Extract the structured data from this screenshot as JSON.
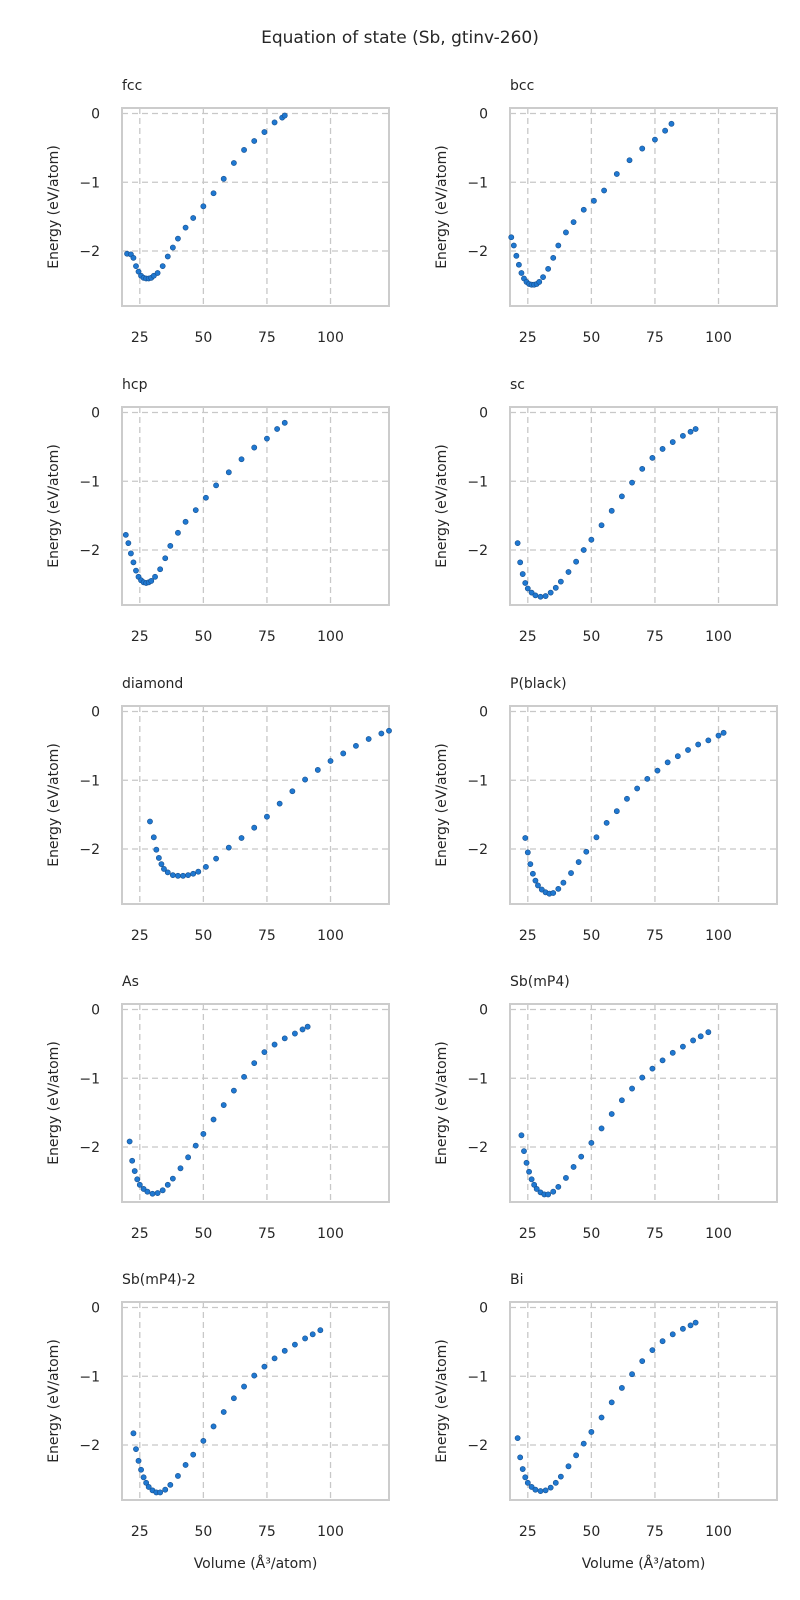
{
  "title": "Equation of state (Sb, gtinv-260)",
  "colors": {
    "point": "#1f78d1",
    "point_edge": "#17508f",
    "grid": "#c8c8c8",
    "frame": "#cccccc"
  },
  "chart_data": [
    {
      "type": "scatter",
      "title": "fcc",
      "xlabel": "",
      "ylabel": "Energy (eV/atom)",
      "xticks": [
        "25",
        "50",
        "75",
        "100"
      ],
      "yticks": [
        "0",
        "−1",
        "−2"
      ],
      "xlim": [
        18,
        123
      ],
      "ylim": [
        -2.8,
        0.08
      ],
      "grid": true,
      "points": [
        [
          20.0,
          -2.04
        ],
        [
          21.5,
          -2.05
        ],
        [
          22.5,
          -2.1
        ],
        [
          23.5,
          -2.22
        ],
        [
          24.5,
          -2.3
        ],
        [
          25.5,
          -2.36
        ],
        [
          26.5,
          -2.39
        ],
        [
          27.5,
          -2.4
        ],
        [
          28.5,
          -2.4
        ],
        [
          29.5,
          -2.39
        ],
        [
          30.5,
          -2.36
        ],
        [
          32.0,
          -2.32
        ],
        [
          34.0,
          -2.22
        ],
        [
          36.0,
          -2.08
        ],
        [
          38.0,
          -1.95
        ],
        [
          40.0,
          -1.82
        ],
        [
          43.0,
          -1.66
        ],
        [
          46.0,
          -1.52
        ],
        [
          50.0,
          -1.35
        ],
        [
          54.0,
          -1.16
        ],
        [
          58.0,
          -0.95
        ],
        [
          62.0,
          -0.72
        ],
        [
          66.0,
          -0.53
        ],
        [
          70.0,
          -0.4
        ],
        [
          74.0,
          -0.27
        ],
        [
          78.0,
          -0.13
        ],
        [
          81.0,
          -0.06
        ],
        [
          82.0,
          -0.03
        ]
      ]
    },
    {
      "type": "scatter",
      "title": "bcc",
      "xlabel": "",
      "ylabel": "Energy (eV/atom)",
      "xticks": [
        "25",
        "50",
        "75",
        "100"
      ],
      "yticks": [
        "0",
        "−1",
        "−2"
      ],
      "xlim": [
        18,
        123
      ],
      "ylim": [
        -2.8,
        0.08
      ],
      "grid": true,
      "points": [
        [
          18.5,
          -1.8
        ],
        [
          19.5,
          -1.92
        ],
        [
          20.5,
          -2.07
        ],
        [
          21.5,
          -2.2
        ],
        [
          22.5,
          -2.32
        ],
        [
          23.5,
          -2.4
        ],
        [
          24.5,
          -2.45
        ],
        [
          25.5,
          -2.48
        ],
        [
          26.5,
          -2.49
        ],
        [
          27.5,
          -2.49
        ],
        [
          28.5,
          -2.48
        ],
        [
          29.5,
          -2.45
        ],
        [
          31.0,
          -2.38
        ],
        [
          33.0,
          -2.26
        ],
        [
          35.0,
          -2.1
        ],
        [
          37.0,
          -1.92
        ],
        [
          40.0,
          -1.73
        ],
        [
          43.0,
          -1.58
        ],
        [
          47.0,
          -1.4
        ],
        [
          51.0,
          -1.27
        ],
        [
          55.0,
          -1.12
        ],
        [
          60.0,
          -0.88
        ],
        [
          65.0,
          -0.68
        ],
        [
          70.0,
          -0.51
        ],
        [
          75.0,
          -0.38
        ],
        [
          79.0,
          -0.25
        ],
        [
          81.5,
          -0.15
        ]
      ]
    },
    {
      "type": "scatter",
      "title": "hcp",
      "xlabel": "",
      "ylabel": "Energy (eV/atom)",
      "xticks": [
        "25",
        "50",
        "75",
        "100"
      ],
      "yticks": [
        "0",
        "−1",
        "−2"
      ],
      "xlim": [
        18,
        123
      ],
      "ylim": [
        -2.8,
        0.08
      ],
      "grid": true,
      "points": [
        [
          19.5,
          -1.78
        ],
        [
          20.5,
          -1.9
        ],
        [
          21.5,
          -2.05
        ],
        [
          22.5,
          -2.18
        ],
        [
          23.5,
          -2.3
        ],
        [
          24.5,
          -2.39
        ],
        [
          25.5,
          -2.44
        ],
        [
          26.5,
          -2.47
        ],
        [
          27.5,
          -2.48
        ],
        [
          28.5,
          -2.47
        ],
        [
          29.5,
          -2.45
        ],
        [
          31.0,
          -2.39
        ],
        [
          33.0,
          -2.28
        ],
        [
          35.0,
          -2.12
        ],
        [
          37.0,
          -1.94
        ],
        [
          40.0,
          -1.75
        ],
        [
          43.0,
          -1.59
        ],
        [
          47.0,
          -1.42
        ],
        [
          51.0,
          -1.24
        ],
        [
          55.0,
          -1.06
        ],
        [
          60.0,
          -0.87
        ],
        [
          65.0,
          -0.68
        ],
        [
          70.0,
          -0.51
        ],
        [
          75.0,
          -0.38
        ],
        [
          79.0,
          -0.24
        ],
        [
          82.0,
          -0.15
        ]
      ]
    },
    {
      "type": "scatter",
      "title": "sc",
      "xlabel": "",
      "ylabel": "Energy (eV/atom)",
      "xticks": [
        "25",
        "50",
        "75",
        "100"
      ],
      "yticks": [
        "0",
        "−1",
        "−2"
      ],
      "xlim": [
        18,
        123
      ],
      "ylim": [
        -2.8,
        0.08
      ],
      "grid": true,
      "points": [
        [
          21.0,
          -1.9
        ],
        [
          22.0,
          -2.18
        ],
        [
          23.0,
          -2.35
        ],
        [
          24.0,
          -2.48
        ],
        [
          25.0,
          -2.56
        ],
        [
          26.5,
          -2.62
        ],
        [
          28.0,
          -2.66
        ],
        [
          30.0,
          -2.68
        ],
        [
          32.0,
          -2.67
        ],
        [
          34.0,
          -2.62
        ],
        [
          36.0,
          -2.55
        ],
        [
          38.0,
          -2.46
        ],
        [
          41.0,
          -2.32
        ],
        [
          44.0,
          -2.17
        ],
        [
          47.0,
          -2.0
        ],
        [
          50.0,
          -1.85
        ],
        [
          54.0,
          -1.64
        ],
        [
          58.0,
          -1.43
        ],
        [
          62.0,
          -1.22
        ],
        [
          66.0,
          -1.02
        ],
        [
          70.0,
          -0.82
        ],
        [
          74.0,
          -0.66
        ],
        [
          78.0,
          -0.53
        ],
        [
          82.0,
          -0.43
        ],
        [
          86.0,
          -0.34
        ],
        [
          89.0,
          -0.28
        ],
        [
          91.0,
          -0.24
        ]
      ]
    },
    {
      "type": "scatter",
      "title": "diamond",
      "xlabel": "",
      "ylabel": "Energy (eV/atom)",
      "xticks": [
        "25",
        "50",
        "75",
        "100"
      ],
      "yticks": [
        "0",
        "−1",
        "−2"
      ],
      "xlim": [
        18,
        123
      ],
      "ylim": [
        -2.8,
        0.08
      ],
      "grid": true,
      "points": [
        [
          29.0,
          -1.6
        ],
        [
          30.5,
          -1.83
        ],
        [
          31.5,
          -2.01
        ],
        [
          32.5,
          -2.13
        ],
        [
          33.5,
          -2.22
        ],
        [
          34.5,
          -2.29
        ],
        [
          36.0,
          -2.34
        ],
        [
          38.0,
          -2.38
        ],
        [
          40.0,
          -2.39
        ],
        [
          42.0,
          -2.39
        ],
        [
          44.0,
          -2.38
        ],
        [
          46.0,
          -2.36
        ],
        [
          48.0,
          -2.33
        ],
        [
          51.0,
          -2.26
        ],
        [
          55.0,
          -2.14
        ],
        [
          60.0,
          -1.98
        ],
        [
          65.0,
          -1.84
        ],
        [
          70.0,
          -1.69
        ],
        [
          75.0,
          -1.53
        ],
        [
          80.0,
          -1.34
        ],
        [
          85.0,
          -1.16
        ],
        [
          90.0,
          -0.99
        ],
        [
          95.0,
          -0.85
        ],
        [
          100.0,
          -0.72
        ],
        [
          105.0,
          -0.61
        ],
        [
          110.0,
          -0.5
        ],
        [
          115.0,
          -0.4
        ],
        [
          120.0,
          -0.32
        ],
        [
          123.0,
          -0.28
        ]
      ]
    },
    {
      "type": "scatter",
      "title": "P(black)",
      "xlabel": "",
      "ylabel": "Energy (eV/atom)",
      "xticks": [
        "25",
        "50",
        "75",
        "100"
      ],
      "yticks": [
        "0",
        "−1",
        "−2"
      ],
      "xlim": [
        18,
        123
      ],
      "ylim": [
        -2.8,
        0.08
      ],
      "grid": true,
      "points": [
        [
          24.0,
          -1.84
        ],
        [
          25.0,
          -2.05
        ],
        [
          26.0,
          -2.22
        ],
        [
          27.0,
          -2.36
        ],
        [
          28.0,
          -2.46
        ],
        [
          29.0,
          -2.53
        ],
        [
          30.5,
          -2.59
        ],
        [
          32.0,
          -2.63
        ],
        [
          33.5,
          -2.65
        ],
        [
          35.0,
          -2.64
        ],
        [
          37.0,
          -2.58
        ],
        [
          39.0,
          -2.49
        ],
        [
          42.0,
          -2.35
        ],
        [
          45.0,
          -2.19
        ],
        [
          48.0,
          -2.04
        ],
        [
          52.0,
          -1.83
        ],
        [
          56.0,
          -1.62
        ],
        [
          60.0,
          -1.45
        ],
        [
          64.0,
          -1.27
        ],
        [
          68.0,
          -1.12
        ],
        [
          72.0,
          -0.98
        ],
        [
          76.0,
          -0.86
        ],
        [
          80.0,
          -0.74
        ],
        [
          84.0,
          -0.65
        ],
        [
          88.0,
          -0.56
        ],
        [
          92.0,
          -0.48
        ],
        [
          96.0,
          -0.42
        ],
        [
          100.0,
          -0.35
        ],
        [
          102.0,
          -0.31
        ]
      ]
    },
    {
      "type": "scatter",
      "title": "As",
      "xlabel": "",
      "ylabel": "Energy (eV/atom)",
      "xticks": [
        "25",
        "50",
        "75",
        "100"
      ],
      "yticks": [
        "0",
        "−1",
        "−2"
      ],
      "xlim": [
        18,
        123
      ],
      "ylim": [
        -2.8,
        0.08
      ],
      "grid": true,
      "points": [
        [
          21.0,
          -1.92
        ],
        [
          22.0,
          -2.2
        ],
        [
          23.0,
          -2.35
        ],
        [
          24.0,
          -2.47
        ],
        [
          25.0,
          -2.55
        ],
        [
          26.5,
          -2.61
        ],
        [
          28.0,
          -2.65
        ],
        [
          30.0,
          -2.68
        ],
        [
          32.0,
          -2.67
        ],
        [
          34.0,
          -2.63
        ],
        [
          36.0,
          -2.55
        ],
        [
          38.0,
          -2.46
        ],
        [
          41.0,
          -2.31
        ],
        [
          44.0,
          -2.15
        ],
        [
          47.0,
          -1.98
        ],
        [
          50.0,
          -1.81
        ],
        [
          54.0,
          -1.6
        ],
        [
          58.0,
          -1.39
        ],
        [
          62.0,
          -1.18
        ],
        [
          66.0,
          -0.98
        ],
        [
          70.0,
          -0.78
        ],
        [
          74.0,
          -0.62
        ],
        [
          78.0,
          -0.51
        ],
        [
          82.0,
          -0.42
        ],
        [
          86.0,
          -0.35
        ],
        [
          89.0,
          -0.29
        ],
        [
          91.0,
          -0.25
        ]
      ]
    },
    {
      "type": "scatter",
      "title": "Sb(mP4)",
      "xlabel": "",
      "ylabel": "Energy (eV/atom)",
      "xticks": [
        "25",
        "50",
        "75",
        "100"
      ],
      "yticks": [
        "0",
        "−1",
        "−2"
      ],
      "xlim": [
        18,
        123
      ],
      "ylim": [
        -2.8,
        0.08
      ],
      "grid": true,
      "points": [
        [
          22.5,
          -1.83
        ],
        [
          23.5,
          -2.06
        ],
        [
          24.5,
          -2.23
        ],
        [
          25.5,
          -2.36
        ],
        [
          26.5,
          -2.47
        ],
        [
          27.5,
          -2.55
        ],
        [
          28.5,
          -2.61
        ],
        [
          30.0,
          -2.66
        ],
        [
          31.5,
          -2.69
        ],
        [
          33.0,
          -2.69
        ],
        [
          35.0,
          -2.65
        ],
        [
          37.0,
          -2.58
        ],
        [
          40.0,
          -2.45
        ],
        [
          43.0,
          -2.29
        ],
        [
          46.0,
          -2.14
        ],
        [
          50.0,
          -1.94
        ],
        [
          54.0,
          -1.73
        ],
        [
          58.0,
          -1.52
        ],
        [
          62.0,
          -1.32
        ],
        [
          66.0,
          -1.15
        ],
        [
          70.0,
          -0.99
        ],
        [
          74.0,
          -0.86
        ],
        [
          78.0,
          -0.74
        ],
        [
          82.0,
          -0.63
        ],
        [
          86.0,
          -0.54
        ],
        [
          90.0,
          -0.45
        ],
        [
          93.0,
          -0.39
        ],
        [
          96.0,
          -0.33
        ]
      ]
    },
    {
      "type": "scatter",
      "title": "Sb(mP4)-2",
      "xlabel": "Volume (Å³/atom)",
      "ylabel": "Energy (eV/atom)",
      "xticks": [
        "25",
        "50",
        "75",
        "100"
      ],
      "yticks": [
        "0",
        "−1",
        "−2"
      ],
      "xlim": [
        18,
        123
      ],
      "ylim": [
        -2.8,
        0.08
      ],
      "grid": true,
      "points": [
        [
          22.5,
          -1.83
        ],
        [
          23.5,
          -2.06
        ],
        [
          24.5,
          -2.23
        ],
        [
          25.5,
          -2.36
        ],
        [
          26.5,
          -2.47
        ],
        [
          27.5,
          -2.55
        ],
        [
          28.5,
          -2.61
        ],
        [
          30.0,
          -2.66
        ],
        [
          31.5,
          -2.69
        ],
        [
          33.0,
          -2.69
        ],
        [
          35.0,
          -2.65
        ],
        [
          37.0,
          -2.58
        ],
        [
          40.0,
          -2.45
        ],
        [
          43.0,
          -2.29
        ],
        [
          46.0,
          -2.14
        ],
        [
          50.0,
          -1.94
        ],
        [
          54.0,
          -1.73
        ],
        [
          58.0,
          -1.52
        ],
        [
          62.0,
          -1.32
        ],
        [
          66.0,
          -1.15
        ],
        [
          70.0,
          -0.99
        ],
        [
          74.0,
          -0.86
        ],
        [
          78.0,
          -0.74
        ],
        [
          82.0,
          -0.63
        ],
        [
          86.0,
          -0.54
        ],
        [
          90.0,
          -0.45
        ],
        [
          93.0,
          -0.39
        ],
        [
          96.0,
          -0.33
        ]
      ]
    },
    {
      "type": "scatter",
      "title": "Bi",
      "xlabel": "Volume (Å³/atom)",
      "ylabel": "Energy (eV/atom)",
      "xticks": [
        "25",
        "50",
        "75",
        "100"
      ],
      "yticks": [
        "0",
        "−1",
        "−2"
      ],
      "xlim": [
        18,
        123
      ],
      "ylim": [
        -2.8,
        0.08
      ],
      "grid": true,
      "points": [
        [
          21.0,
          -1.9
        ],
        [
          22.0,
          -2.18
        ],
        [
          23.0,
          -2.35
        ],
        [
          24.0,
          -2.47
        ],
        [
          25.0,
          -2.55
        ],
        [
          26.5,
          -2.61
        ],
        [
          28.0,
          -2.65
        ],
        [
          30.0,
          -2.67
        ],
        [
          32.0,
          -2.66
        ],
        [
          34.0,
          -2.62
        ],
        [
          36.0,
          -2.55
        ],
        [
          38.0,
          -2.46
        ],
        [
          41.0,
          -2.31
        ],
        [
          44.0,
          -2.15
        ],
        [
          47.0,
          -1.98
        ],
        [
          50.0,
          -1.81
        ],
        [
          54.0,
          -1.6
        ],
        [
          58.0,
          -1.38
        ],
        [
          62.0,
          -1.17
        ],
        [
          66.0,
          -0.97
        ],
        [
          70.0,
          -0.78
        ],
        [
          74.0,
          -0.62
        ],
        [
          78.0,
          -0.49
        ],
        [
          82.0,
          -0.39
        ],
        [
          86.0,
          -0.31
        ],
        [
          89.0,
          -0.26
        ],
        [
          91.0,
          -0.22
        ]
      ]
    }
  ]
}
